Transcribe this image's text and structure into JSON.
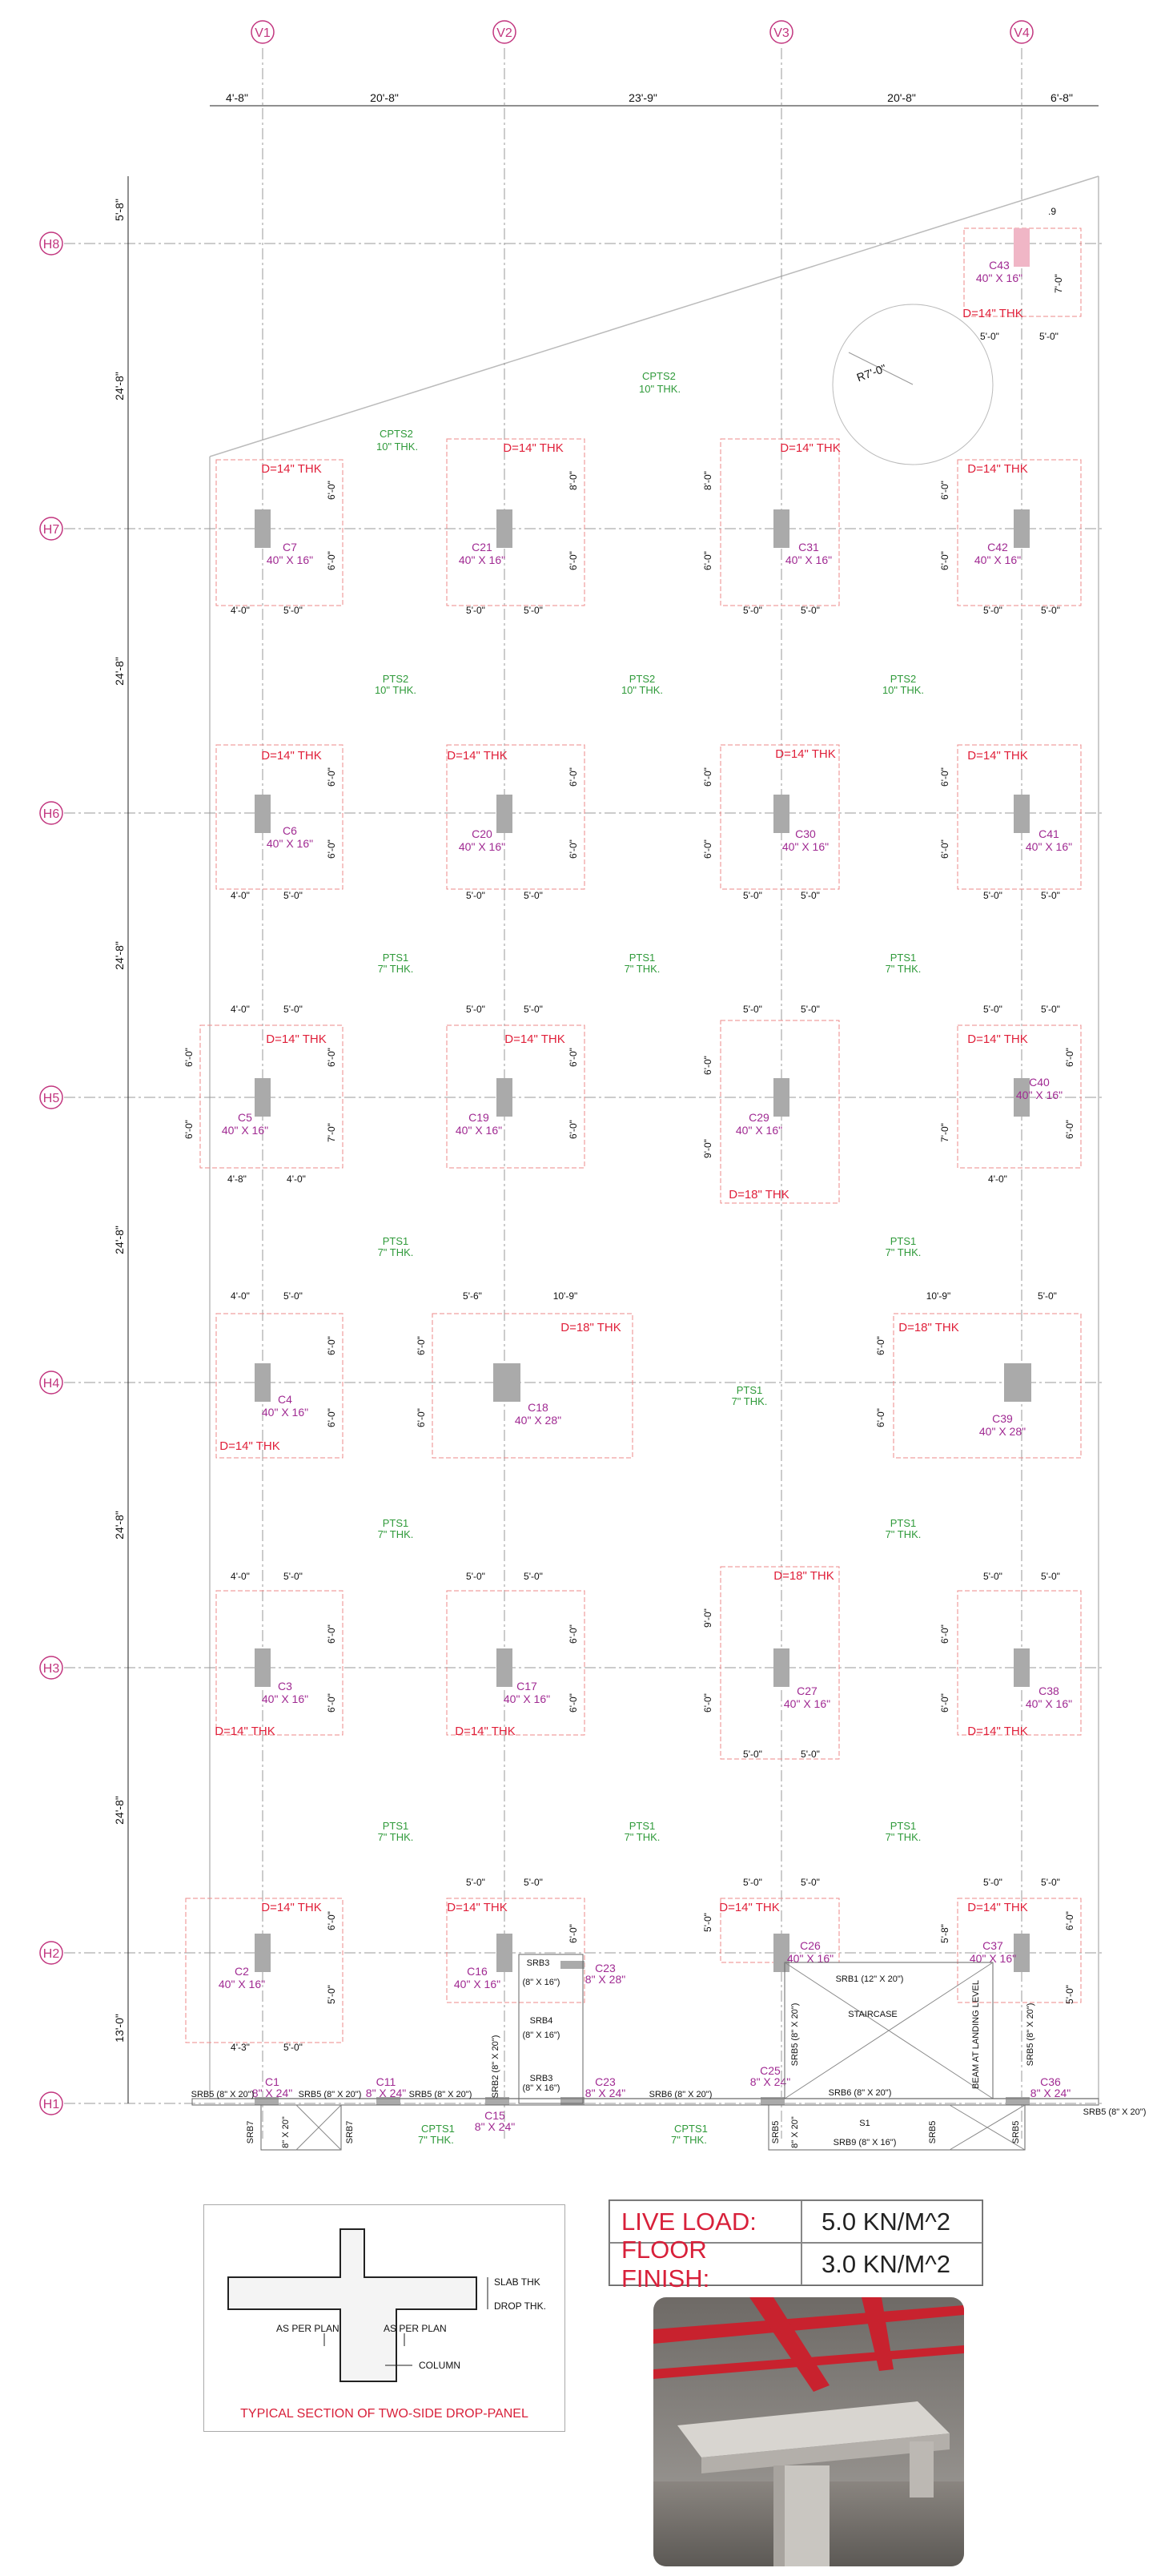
{
  "grid": {
    "vertical": [
      "V1",
      "V2",
      "V3",
      "V4"
    ],
    "horizontal": [
      "H8",
      "H7",
      "H6",
      "H5",
      "H4",
      "H3",
      "H2",
      "H1"
    ]
  },
  "top_dims": [
    "4'-8\"",
    "20'-8\"",
    "23'-9\"",
    "20'-8\"",
    "6'-8\""
  ],
  "left_dims": [
    "5'-8\"",
    "24'-8\"",
    "24'-8\"",
    "24'-8\"",
    "24'-8\"",
    "24'-8\"",
    "24'-8\"",
    "13'-0\""
  ],
  "colors": {
    "grid": "#c2367f",
    "drop": "#e0203a",
    "column_label": "#a02a92",
    "slab": "#2f9a3a"
  },
  "columns": [
    {
      "id": "C43",
      "size": "40\" X 16\""
    },
    {
      "id": "C7",
      "size": "40\" X 16\""
    },
    {
      "id": "C21",
      "size": "40\" X 16\""
    },
    {
      "id": "C31",
      "size": "40\" X 16\""
    },
    {
      "id": "C42",
      "size": "40\" X 16\""
    },
    {
      "id": "C6",
      "size": "40\" X 16\""
    },
    {
      "id": "C20",
      "size": "40\" X 16\""
    },
    {
      "id": "C30",
      "size": "40\" X 16\""
    },
    {
      "id": "C41",
      "size": "40\" X 16\""
    },
    {
      "id": "C5",
      "size": "40\" X 16\""
    },
    {
      "id": "C19",
      "size": "40\" X 16\""
    },
    {
      "id": "C29",
      "size": "40\" X 16\""
    },
    {
      "id": "C40",
      "size": "40\" X 16\""
    },
    {
      "id": "C4",
      "size": "40\" X 16\""
    },
    {
      "id": "C18",
      "size": "40\" X 28\""
    },
    {
      "id": "C39",
      "size": "40\" X 28\""
    },
    {
      "id": "C3",
      "size": "40\" X 16\""
    },
    {
      "id": "C17",
      "size": "40\" X 16\""
    },
    {
      "id": "C27",
      "size": "40\" X 16\""
    },
    {
      "id": "C38",
      "size": "40\" X 16\""
    },
    {
      "id": "C2",
      "size": "40\" X 16\""
    },
    {
      "id": "C16",
      "size": "40\" X 16\""
    },
    {
      "id": "C26",
      "size": "40\" X 16\""
    },
    {
      "id": "C37",
      "size": "40\" X 16\""
    },
    {
      "id": "C1",
      "size": "8\" X 24\""
    },
    {
      "id": "C11",
      "size": "8\" X 24\""
    },
    {
      "id": "C15",
      "size": "8\" X 24\""
    },
    {
      "id": "C23",
      "size": "8\" X 24\""
    },
    {
      "id": "C23",
      "size": "8\" X 28\""
    },
    {
      "id": "C25",
      "size": "8\" X 24\""
    },
    {
      "id": "C36",
      "size": "8\" X 24\""
    }
  ],
  "drop_labels": {
    "d14": "D=14\" THK",
    "d18": "D=18\" THK"
  },
  "slabs": {
    "cpts2": [
      "CPTS2",
      "10\" THK."
    ],
    "pts2": [
      "PTS2",
      "10\" THK."
    ],
    "pts1": [
      "PTS1",
      "7\" THK."
    ],
    "cpts1": [
      "CPTS1",
      "7\" THK."
    ]
  },
  "misc": {
    "radius": "R7'-0\"",
    "srb1": "SRB1 (12\" X 20\")",
    "staircase": "STAIRCASE",
    "beam_landing": "BEAM AT LANDING LEVEL",
    "srb5": "SRB5 (8\" X 20\")",
    "srb6": "SRB6 (8\" X 20\")",
    "srb9": "SRB9 (8\" X 16\")",
    "s1": "S1",
    "srb2": "SRB2 (8\" X 20\")",
    "srb3": "SRB3",
    "srb3_size": "(8\" X 16\")",
    "srb4": "SRB4",
    "srb4_size": "(8\" X 16\")",
    "srb7": "SRB7",
    "srb5_short": "SRB5",
    "size_8x20": "8\" X 20\"",
    "srb5_v": "SRB5 (8\" X 20\")"
  },
  "dims_common": {
    "d4_0": "4'-0\"",
    "d5_0": "5'-0\"",
    "d6_0": "6'-0\"",
    "d8_0": "8'-0\"",
    "d7_0": "7'-0\"",
    "d9_0": "9'-0\"",
    "d4_8": "4'-8\"",
    "d4_3": "4'-3\"",
    "d5_6": "5'-6\"",
    "d10_9": "10'-9\"",
    "d5_8": "5'-8\"",
    "d9": ".9"
  },
  "loads": {
    "live_label": "LIVE LOAD:",
    "live_value": "5.0 KN/M^2",
    "finish_label": "FLOOR FINISH:",
    "finish_value": "3.0 KN/M^2"
  },
  "section": {
    "title": "TYPICAL SECTION OF TWO-SIDE DROP-PANEL",
    "slab_thk": "SLAB THK",
    "drop_thk": "DROP THK.",
    "as_per_plan": "AS PER PLAN",
    "column": "COLUMN"
  }
}
